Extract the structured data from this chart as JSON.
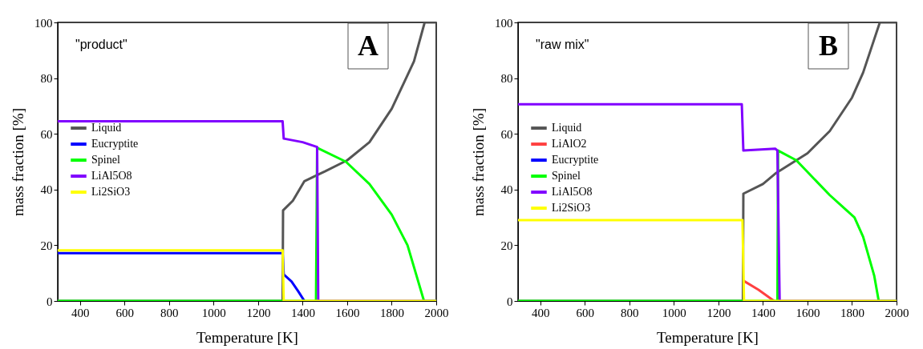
{
  "chart_data": [
    {
      "type": "line",
      "xlabel": "Temperature [K]",
      "ylabel": "mass fraction [%]",
      "annotations": [
        "\"product\"",
        "A"
      ],
      "xlim": [
        300,
        2000
      ],
      "ylim": [
        0,
        100
      ],
      "xticks": [
        400,
        600,
        800,
        1000,
        1200,
        1400,
        1600,
        1800,
        2000
      ],
      "yticks": [
        0,
        20,
        40,
        60,
        80,
        100
      ],
      "grid": false,
      "legend": "left",
      "marker": "none",
      "line_style": "solid",
      "series": [
        {
          "name": "Liquid",
          "color": "#555555",
          "x": [
            300,
            1310,
            1312,
            1356,
            1408,
            1460,
            1500,
            1600,
            1700,
            1800,
            1900,
            1948,
            2000
          ],
          "values": [
            0,
            0,
            32.5,
            36,
            43,
            45,
            46.5,
            50.5,
            57,
            69,
            86,
            100,
            100
          ]
        },
        {
          "name": "Eucryptite",
          "color": "#0000ff",
          "x": [
            300,
            1310,
            1315,
            1350,
            1380,
            1408
          ],
          "values": [
            17.2,
            17.2,
            9.5,
            7,
            3.5,
            0
          ]
        },
        {
          "name": "Spinel",
          "color": "#00ff00",
          "x": [
            300,
            1460,
            1465,
            1594,
            1700,
            1800,
            1871,
            1945,
            2000
          ],
          "values": [
            0,
            0,
            55,
            50,
            42,
            31,
            20,
            0,
            0
          ]
        },
        {
          "name": "LiAl5O8",
          "color": "#8000ff",
          "x": [
            300,
            1310,
            1315,
            1400,
            1465,
            1470,
            2000
          ],
          "values": [
            64.5,
            64.5,
            58.3,
            57,
            55.3,
            0,
            0
          ]
        },
        {
          "name": "Li2SiO3",
          "color": "#ffff00",
          "x": [
            300,
            1310,
            1315,
            2000
          ],
          "values": [
            18.2,
            18.2,
            0,
            0
          ]
        }
      ]
    },
    {
      "type": "line",
      "xlabel": "Temperature [K]",
      "ylabel": "mass fraction [%]",
      "annotations": [
        "\"raw mix\"",
        "B"
      ],
      "xlim": [
        300,
        2000
      ],
      "ylim": [
        0,
        100
      ],
      "xticks": [
        400,
        600,
        800,
        1000,
        1200,
        1400,
        1600,
        1800,
        2000
      ],
      "yticks": [
        0,
        20,
        40,
        60,
        80,
        100
      ],
      "grid": false,
      "legend": "left",
      "marker": "none",
      "line_style": "solid",
      "series": [
        {
          "name": "Liquid",
          "color": "#555555",
          "x": [
            300,
            1310,
            1312,
            1400,
            1460,
            1500,
            1550,
            1600,
            1700,
            1800,
            1850,
            1900,
            1925,
            2000
          ],
          "values": [
            0,
            0,
            38.5,
            42,
            46,
            48,
            50.5,
            53,
            61,
            73,
            82,
            94,
            100,
            100
          ]
        },
        {
          "name": "LiAlO2",
          "color": "#ff4040",
          "x": [
            1312,
            1380,
            1450
          ],
          "values": [
            7.3,
            4,
            0
          ]
        },
        {
          "name": "Eucryptite",
          "color": "#0000ff"
        },
        {
          "name": "Spinel",
          "color": "#00ff00",
          "x": [
            300,
            1465,
            1468,
            1550,
            1700,
            1811,
            1850,
            1900,
            1920,
            2000
          ],
          "values": [
            0,
            0,
            54,
            50.5,
            38,
            30,
            23,
            9,
            0,
            0
          ]
        },
        {
          "name": "LiAl5O8",
          "color": "#8000ff",
          "x": [
            300,
            1305,
            1312,
            1455,
            1465,
            1475,
            2000
          ],
          "values": [
            70.6,
            70.6,
            54,
            54.7,
            54,
            0,
            0
          ]
        },
        {
          "name": "Li2SiO3",
          "color": "#ffff00",
          "x": [
            300,
            1308,
            1315,
            2000
          ],
          "values": [
            29,
            29,
            0,
            0
          ]
        }
      ]
    }
  ]
}
